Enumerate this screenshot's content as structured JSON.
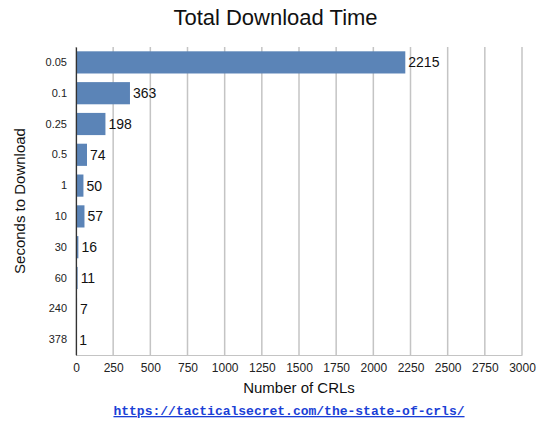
{
  "chart_data": {
    "type": "bar",
    "title": "Total Download Time",
    "x_label": "Number of CRLs",
    "y_label": "Seconds to Download",
    "annotations": [
      "https://tacticalsecret.com/the-state-of-crls/"
    ],
    "categories": [
      "0.05",
      "0.1",
      "0.25",
      "0.5",
      "1",
      "10",
      "30",
      "60",
      "240",
      "378"
    ],
    "values": [
      2215,
      363,
      198,
      74,
      50,
      57,
      16,
      11,
      7,
      1
    ],
    "color": "#5b84b7",
    "orientation": "horizontal",
    "xlim": [
      0,
      3000
    ],
    "xticks": [
      0,
      250,
      500,
      750,
      1000,
      1250,
      1500,
      1750,
      2000,
      2250,
      2500,
      2750,
      3000
    ],
    "grid": true,
    "data_labels": true
  }
}
